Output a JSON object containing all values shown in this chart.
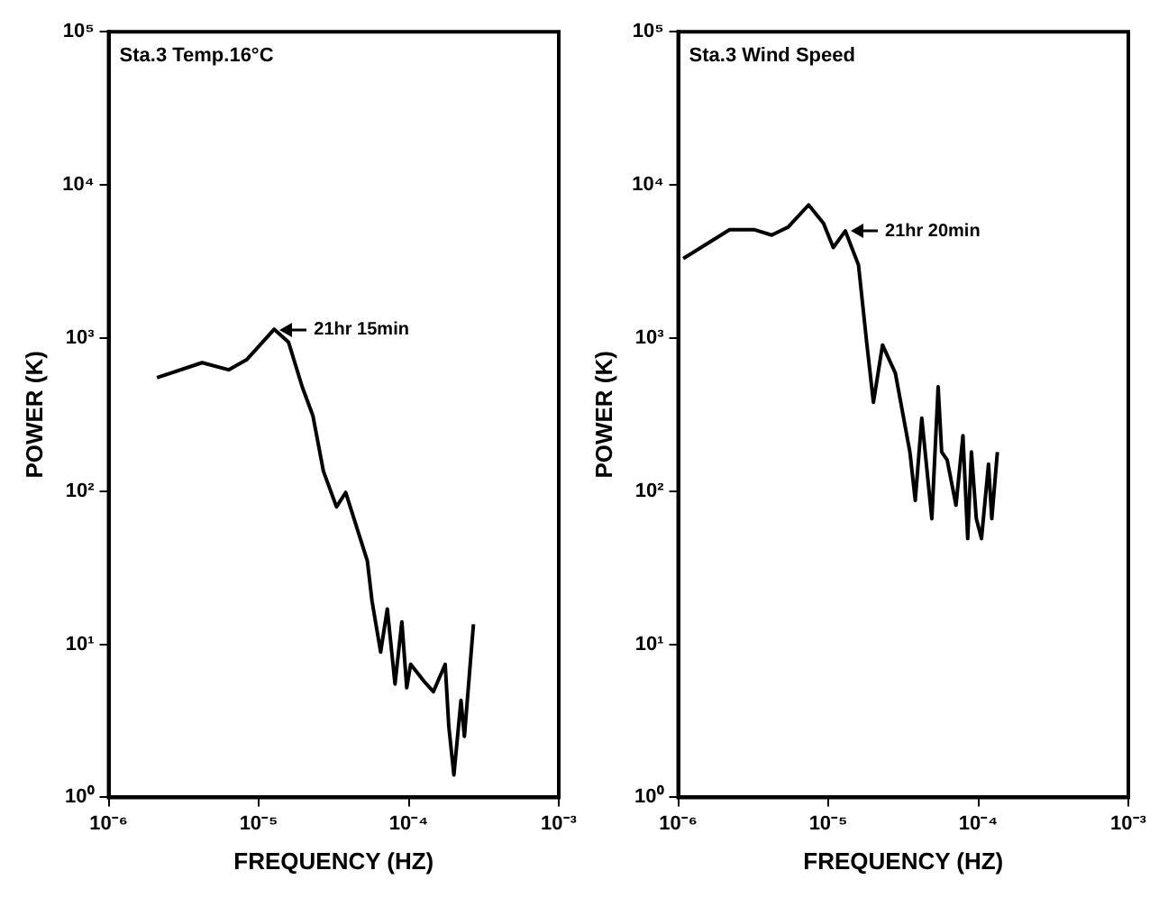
{
  "chart_data": [
    {
      "type": "line",
      "title": "Sta.3 Temp.16°C",
      "xlabel": "FREQUENCY (HZ)",
      "ylabel": "POWER (K)",
      "log": "xy",
      "grid": false,
      "legend": false,
      "marker": "none",
      "line_style": "solid",
      "xlim": [
        1e-06,
        0.001
      ],
      "ylim": [
        1,
        100000
      ],
      "xticks": [
        {
          "value": 1e-06,
          "label": "10⁻⁶"
        },
        {
          "value": 1e-05,
          "label": "10⁻⁵"
        },
        {
          "value": 0.0001,
          "label": "10⁻⁴"
        },
        {
          "value": 0.001,
          "label": "10⁻³"
        }
      ],
      "yticks": [
        {
          "value": 1,
          "label": "10⁰"
        },
        {
          "value": 10,
          "label": "10¹"
        },
        {
          "value": 100,
          "label": "10²"
        },
        {
          "value": 1000,
          "label": "10³"
        },
        {
          "value": 10000,
          "label": "10⁴"
        },
        {
          "value": 100000,
          "label": "10⁵"
        }
      ],
      "annotations": [
        {
          "text": "21hr 15min",
          "x": 1.27e-05,
          "y": 1140
        }
      ],
      "series": [
        {
          "color": "#000000",
          "x": [
            2.1e-06,
            4.2e-06,
            6.3e-06,
            8.3e-06,
            1.27e-05,
            1.58e-05,
            1.95e-05,
            2.3e-05,
            2.7e-05,
            3.3e-05,
            3.8e-05,
            5.3e-05,
            5.7e-05,
            6.5e-05,
            7.2e-05,
            8.1e-05,
            9e-05,
            9.7e-05,
            0.000103,
            0.000127,
            0.000146,
            0.000175,
            0.000185,
            0.0002,
            0.000223,
            0.000235,
            0.00027
          ],
          "values": [
            550,
            690,
            620,
            720,
            1140,
            940,
            480,
            310,
            135,
            79,
            98,
            35,
            19,
            8.9,
            17,
            5.5,
            14,
            5.2,
            7.4,
            5.7,
            4.9,
            7.4,
            2.9,
            1.4,
            4.3,
            2.5,
            13.5
          ]
        }
      ]
    },
    {
      "type": "line",
      "title": "Sta.3 Wind Speed",
      "xlabel": "FREQUENCY (HZ)",
      "ylabel": "POWER (K)",
      "log": "xy",
      "grid": false,
      "legend": false,
      "marker": "none",
      "line_style": "solid",
      "xlim": [
        1e-06,
        0.001
      ],
      "ylim": [
        1,
        100000
      ],
      "xticks": [
        {
          "value": 1e-06,
          "label": "10⁻⁶"
        },
        {
          "value": 1e-05,
          "label": "10⁻⁵"
        },
        {
          "value": 0.0001,
          "label": "10⁻⁴"
        },
        {
          "value": 0.001,
          "label": "10⁻³"
        }
      ],
      "yticks": [
        {
          "value": 1,
          "label": "10⁰"
        },
        {
          "value": 10,
          "label": "10¹"
        },
        {
          "value": 100,
          "label": "10²"
        },
        {
          "value": 1000,
          "label": "10³"
        },
        {
          "value": 10000,
          "label": "10⁴"
        },
        {
          "value": 100000,
          "label": "10⁵"
        }
      ],
      "annotations": [
        {
          "text": "21hr 20min",
          "x": 1.3e-05,
          "y": 5000
        }
      ],
      "series": [
        {
          "color": "#000000",
          "x": [
            1.08e-06,
            2.2e-06,
            3.2e-06,
            4.2e-06,
            5.4e-06,
            7.4e-06,
            9.3e-06,
            1.08e-05,
            1.3e-05,
            1.59e-05,
            1.8e-05,
            2e-05,
            2.3e-05,
            2.8e-05,
            3.5e-05,
            3.8e-05,
            4.2e-05,
            4.9e-05,
            5.4e-05,
            5.7e-05,
            6.2e-05,
            7.1e-05,
            7.9e-05,
            8.5e-05,
            9e-05,
            9.7e-05,
            0.000105,
            0.000117,
            0.000123,
            0.000134
          ],
          "values": [
            3300,
            5100,
            5100,
            4700,
            5300,
            7400,
            5600,
            3900,
            5000,
            3000,
            950,
            380,
            900,
            590,
            180,
            87,
            300,
            66,
            480,
            180,
            160,
            81,
            230,
            49,
            180,
            66,
            49,
            150,
            66,
            180
          ]
        }
      ]
    }
  ]
}
